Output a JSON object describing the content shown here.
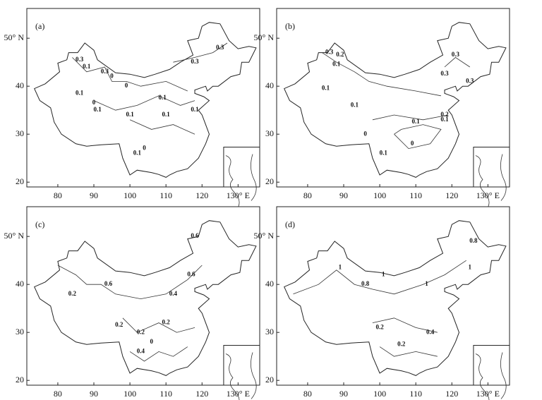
{
  "xlim": [
    71.4,
    136
  ],
  "ylim": [
    19,
    56.2
  ],
  "lon_ticks": [
    80,
    90,
    100,
    110,
    120,
    {
      "value": 130,
      "label": "130° E"
    }
  ],
  "lat_ticks": [
    20,
    30,
    40,
    {
      "value": 50,
      "label": "50° N"
    }
  ],
  "panels": [
    {
      "label": "(a)",
      "contour_labels": [
        "0.3",
        "0.1",
        "0.3",
        "0.1",
        "0",
        "0",
        "0",
        "0.1",
        "0.1",
        "0.1",
        "0.1",
        "0.1",
        "0.3",
        "0.3",
        "0",
        "0.1"
      ]
    },
    {
      "label": "(b)",
      "contour_labels": [
        "0.3",
        "0.2",
        "0.1",
        "0.1",
        "0.3",
        "0.3",
        "0.3",
        "0.2",
        "0.1",
        "0.1",
        "0",
        "0.1",
        "0",
        "0.1"
      ]
    },
    {
      "label": "(c)",
      "contour_labels": [
        "0.2",
        "0.6",
        "0.4",
        "0.6",
        "0.6",
        "0.2",
        "0.2",
        "0",
        "0.2",
        "0.4"
      ]
    },
    {
      "label": "(d)",
      "contour_labels": [
        "1",
        "0.8",
        "1",
        "0.8",
        "1",
        "0.2",
        "0.2",
        "0.4",
        "1"
      ]
    }
  ]
}
